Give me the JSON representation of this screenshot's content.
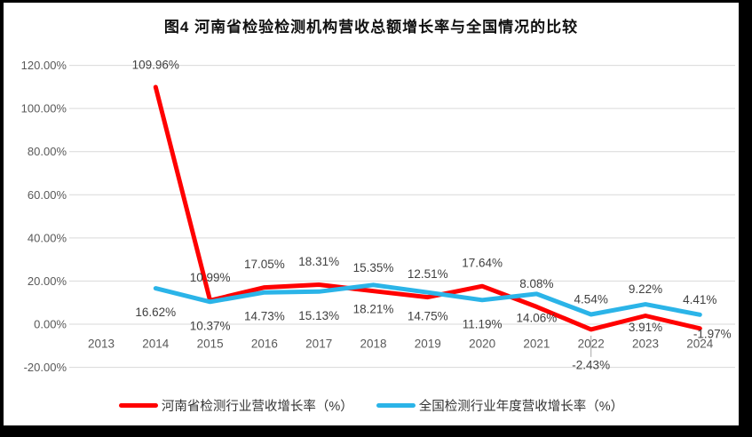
{
  "frame": {
    "border_color": "#000000",
    "chart_background": "#ffffff"
  },
  "chart_data": {
    "type": "line",
    "title": "图4  河南省检验检测机构营收总额增长率与全国情况的比较",
    "categories": [
      "2013",
      "2014",
      "2015",
      "2016",
      "2017",
      "2018",
      "2019",
      "2020",
      "2021",
      "2022",
      "2023",
      "2024"
    ],
    "series": [
      {
        "name": "河南省检测行业营收增长率（%）",
        "color": "#FF0000",
        "values": [
          null,
          109.96,
          10.99,
          17.05,
          18.31,
          15.35,
          12.51,
          17.64,
          8.08,
          -2.43,
          3.91,
          -1.97
        ]
      },
      {
        "name": "全国检测行业年度营收增长率（%）",
        "color": "#2BB4E8",
        "values": [
          null,
          16.62,
          10.37,
          14.73,
          15.13,
          18.21,
          14.75,
          11.19,
          14.06,
          4.54,
          9.22,
          4.41
        ]
      }
    ],
    "y_axis": {
      "min": -20,
      "max": 120,
      "step": 20,
      "ticks": [
        {
          "value": 120,
          "label": "120.00%"
        },
        {
          "value": 100,
          "label": "100.00%"
        },
        {
          "value": 80,
          "label": "80.00%"
        },
        {
          "value": 60,
          "label": "60.00%"
        },
        {
          "value": 40,
          "label": "40.00%"
        },
        {
          "value": 20,
          "label": "20.00%"
        },
        {
          "value": 0,
          "label": "0.00%"
        },
        {
          "value": -20,
          "label": "-20.00%"
        }
      ]
    },
    "grid": true,
    "legend_position": "bottom",
    "data_label_format": "0.00%",
    "colors": {
      "gridline": "#D9D9D9",
      "axis_text": "#595959",
      "data_label_text": "#404040",
      "leader_line": "#A6A6A6"
    }
  }
}
